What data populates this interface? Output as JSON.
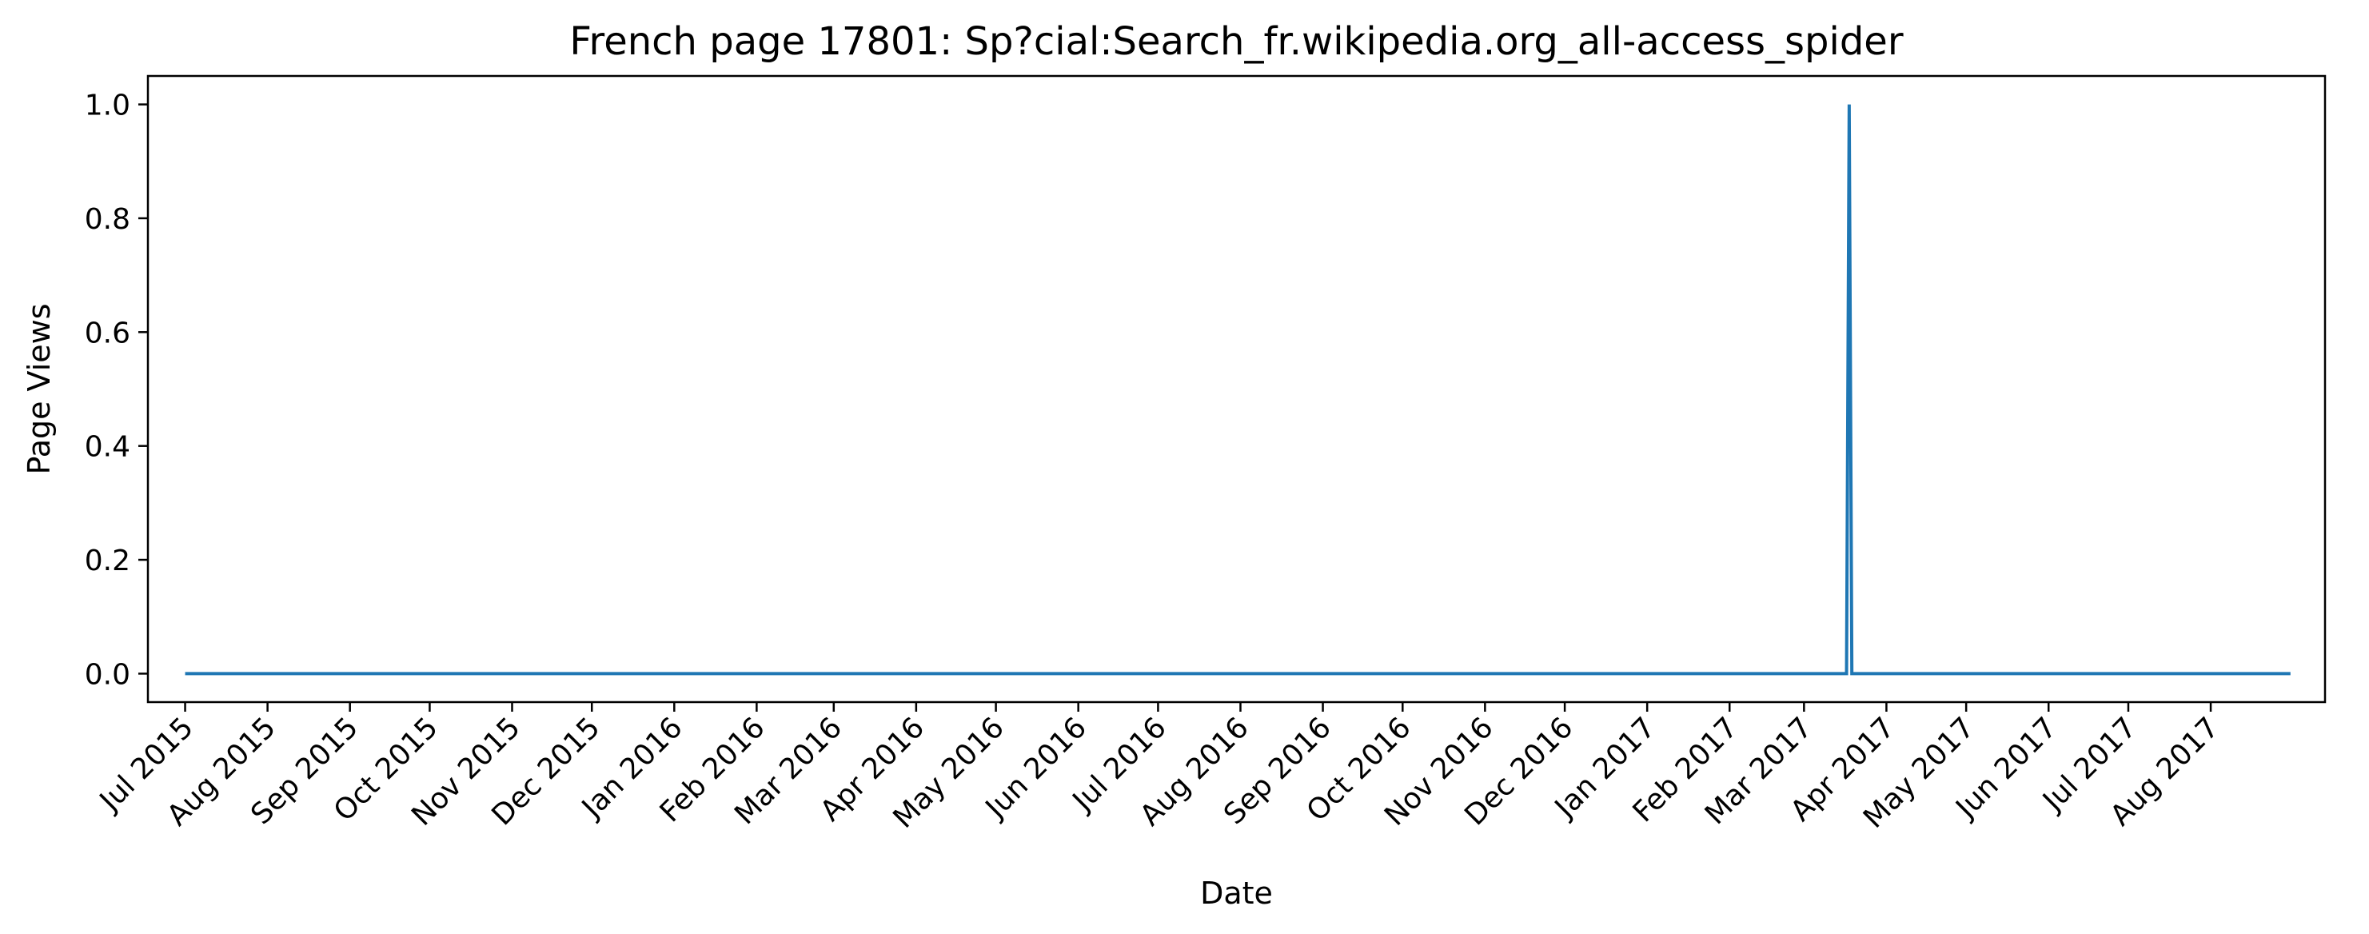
{
  "chart_data": {
    "type": "line",
    "title": "French page 17801: Sp?cial:Search_fr.wikipedia.org_all-access_spider",
    "xlabel": "Date",
    "ylabel": "Page Views",
    "xlim": [
      "2015-06-17",
      "2017-09-13"
    ],
    "ylim": [
      -0.05,
      1.05
    ],
    "grid": false,
    "legend": "none",
    "line_color": "#1f77b4",
    "x_ticks": [
      {
        "date": "2015-07-01",
        "label": "Jul 2015"
      },
      {
        "date": "2015-08-01",
        "label": "Aug 2015"
      },
      {
        "date": "2015-09-01",
        "label": "Sep 2015"
      },
      {
        "date": "2015-10-01",
        "label": "Oct 2015"
      },
      {
        "date": "2015-11-01",
        "label": "Nov 2015"
      },
      {
        "date": "2015-12-01",
        "label": "Dec 2015"
      },
      {
        "date": "2016-01-01",
        "label": "Jan 2016"
      },
      {
        "date": "2016-02-01",
        "label": "Feb 2016"
      },
      {
        "date": "2016-03-01",
        "label": "Mar 2016"
      },
      {
        "date": "2016-04-01",
        "label": "Apr 2016"
      },
      {
        "date": "2016-05-01",
        "label": "May 2016"
      },
      {
        "date": "2016-06-01",
        "label": "Jun 2016"
      },
      {
        "date": "2016-07-01",
        "label": "Jul 2016"
      },
      {
        "date": "2016-08-01",
        "label": "Aug 2016"
      },
      {
        "date": "2016-09-01",
        "label": "Sep 2016"
      },
      {
        "date": "2016-10-01",
        "label": "Oct 2016"
      },
      {
        "date": "2016-11-01",
        "label": "Nov 2016"
      },
      {
        "date": "2016-12-01",
        "label": "Dec 2016"
      },
      {
        "date": "2017-01-01",
        "label": "Jan 2017"
      },
      {
        "date": "2017-02-01",
        "label": "Feb 2017"
      },
      {
        "date": "2017-03-01",
        "label": "Mar 2017"
      },
      {
        "date": "2017-04-01",
        "label": "Apr 2017"
      },
      {
        "date": "2017-05-01",
        "label": "May 2017"
      },
      {
        "date": "2017-06-01",
        "label": "Jun 2017"
      },
      {
        "date": "2017-07-01",
        "label": "Jul 2017"
      },
      {
        "date": "2017-08-01",
        "label": "Aug 2017"
      }
    ],
    "y_ticks": [
      {
        "value": 0.0,
        "label": "0.0"
      },
      {
        "value": 0.2,
        "label": "0.2"
      },
      {
        "value": 0.4,
        "label": "0.4"
      },
      {
        "value": 0.6,
        "label": "0.6"
      },
      {
        "value": 0.8,
        "label": "0.8"
      },
      {
        "value": 1.0,
        "label": "1.0"
      }
    ],
    "series": [
      {
        "points": [
          {
            "x": "2015-07-01",
            "y": 0
          },
          {
            "x": "2017-03-17",
            "y": 0
          },
          {
            "x": "2017-03-18",
            "y": 1
          },
          {
            "x": "2017-03-19",
            "y": 0
          },
          {
            "x": "2017-08-31",
            "y": 0
          }
        ]
      }
    ]
  }
}
